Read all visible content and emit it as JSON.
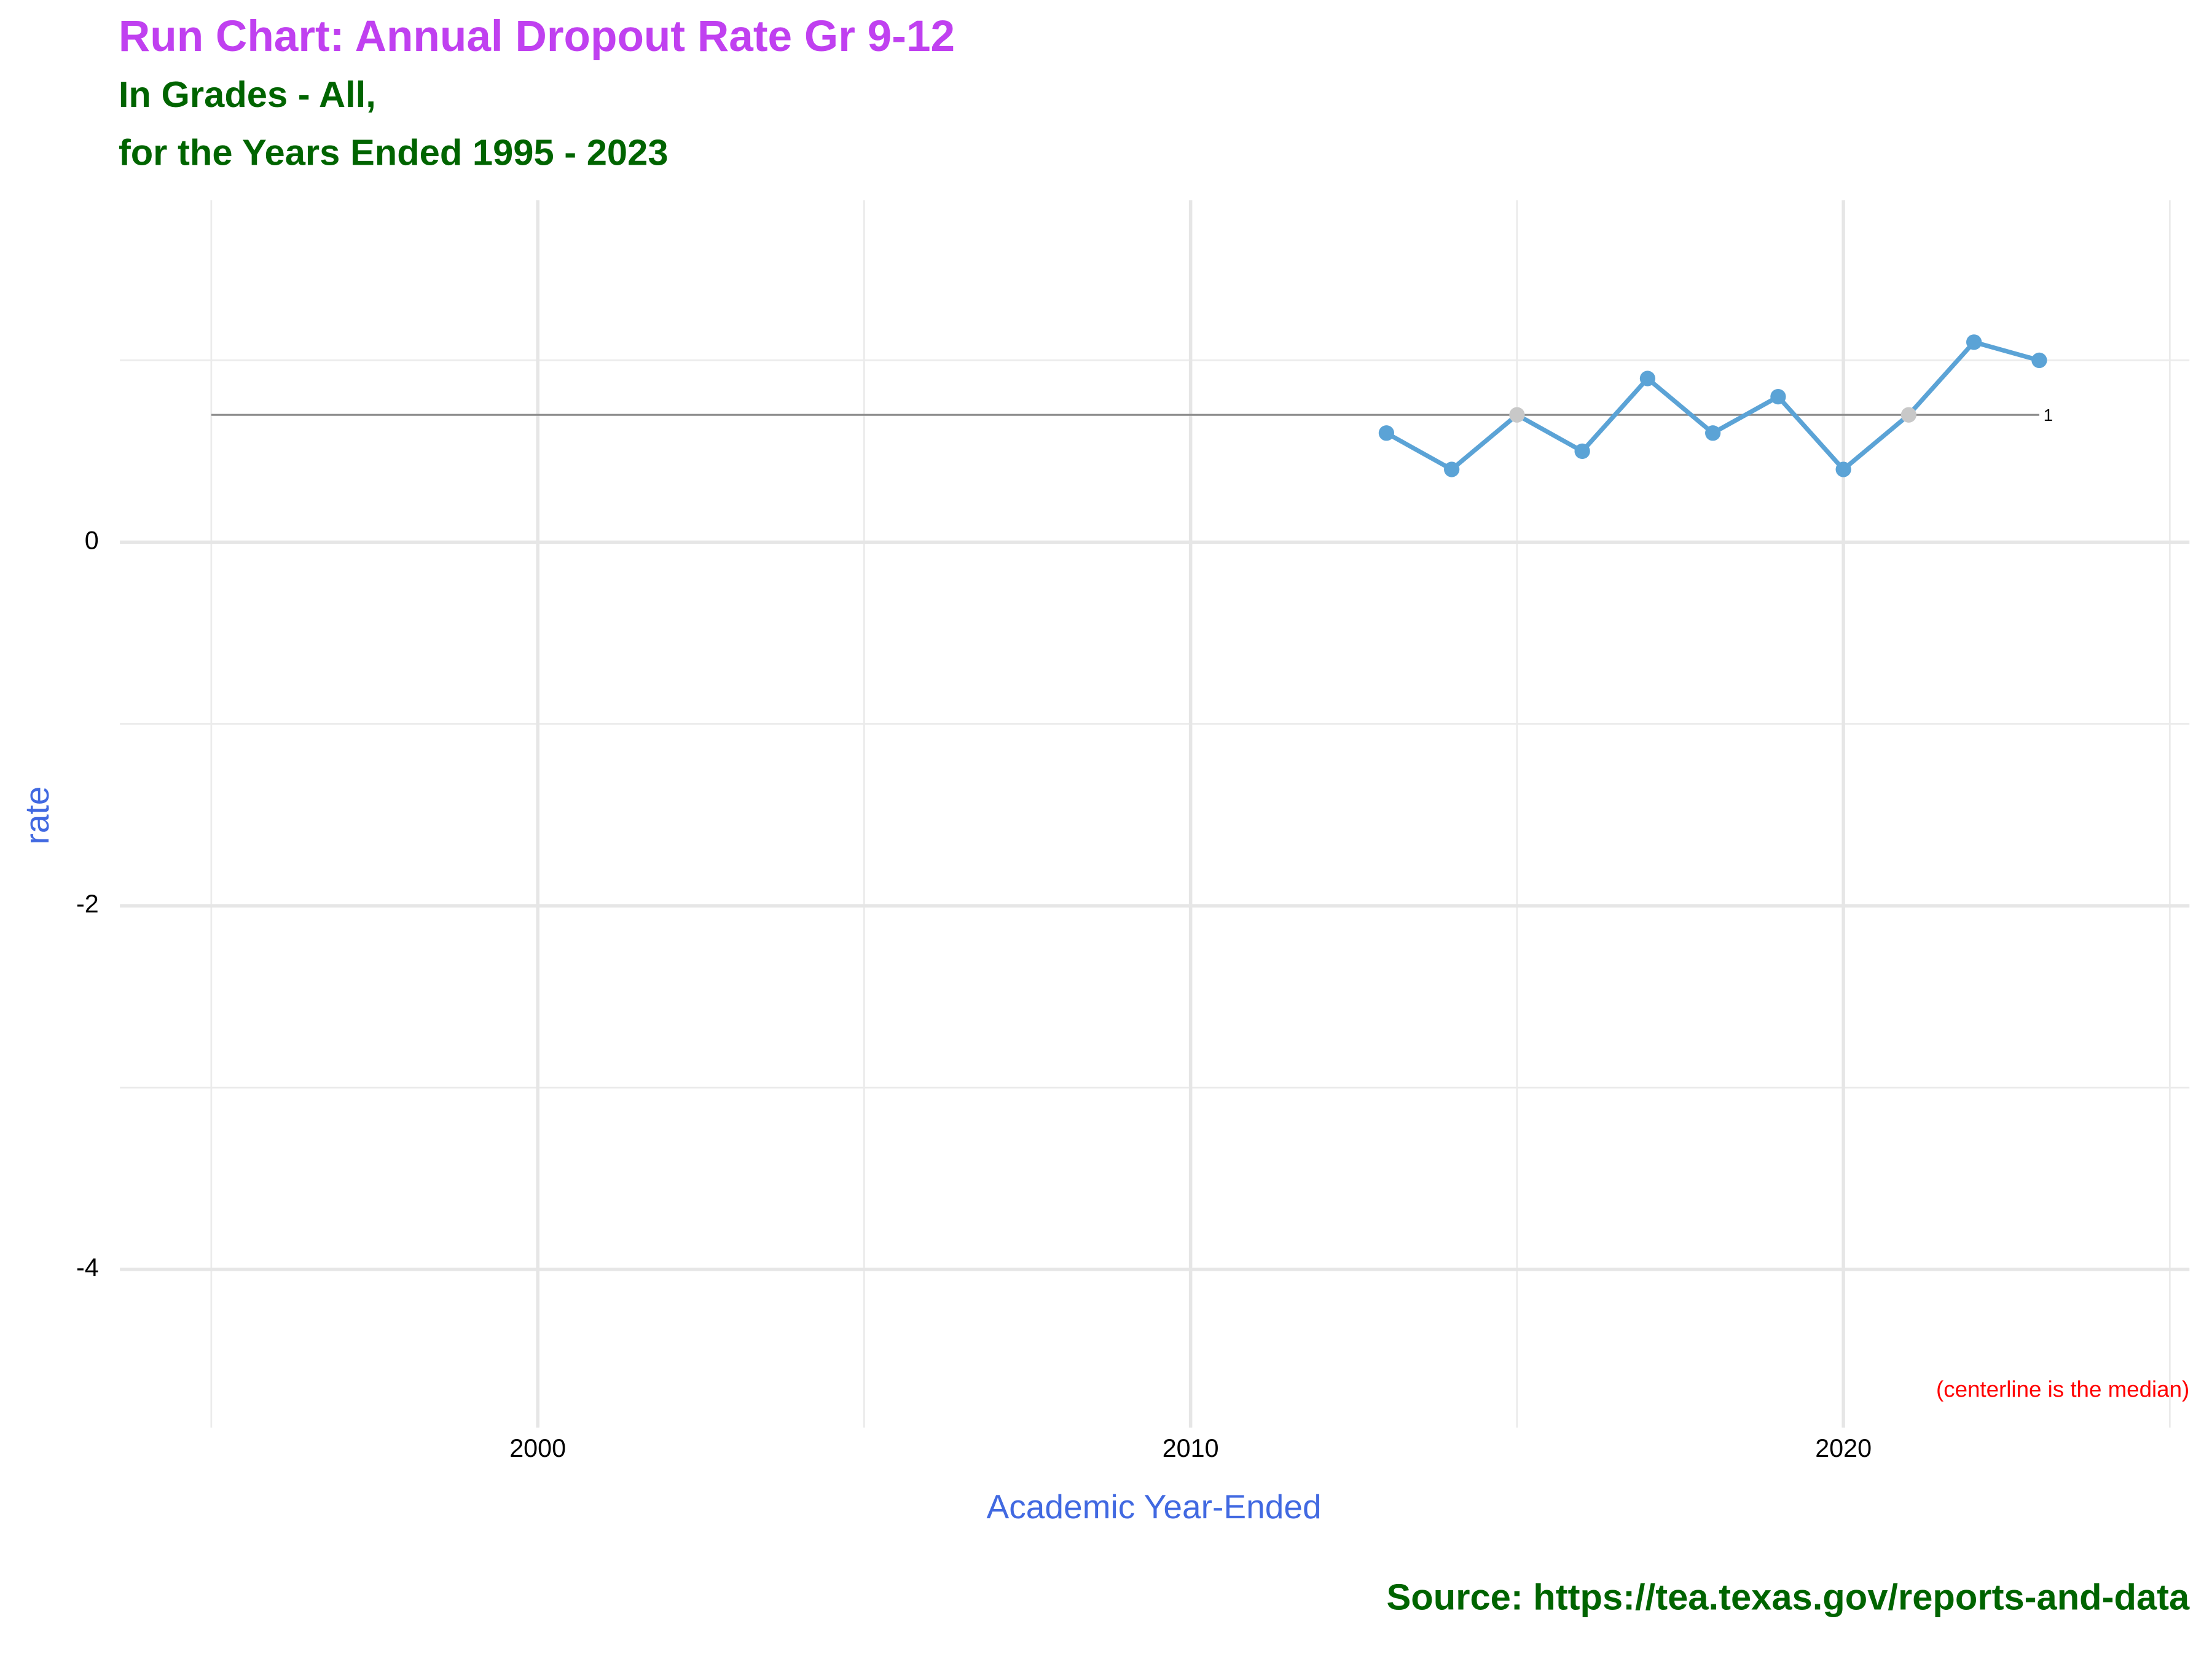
{
  "chart_data": {
    "type": "line",
    "title": "Run Chart: Annual Dropout Rate Gr 9-12",
    "subtitle": [
      "In Grades - All,",
      "for the Years Ended 1995 - 2023"
    ],
    "x_label": "Academic Year-Ended",
    "y_label": "rate",
    "annotation": "(centerline is the median)",
    "caption": "Source:  https://tea.texas.gov/reports-and-data",
    "x": [
      2013,
      2014,
      2015,
      2016,
      2017,
      2018,
      2019,
      2020,
      2021,
      2022,
      2023
    ],
    "series": [
      {
        "name": "rate",
        "color": "#5ba3d6",
        "values": [
          0.6,
          0.4,
          0.7,
          0.5,
          0.9,
          0.6,
          0.8,
          0.4,
          0.7,
          1.1,
          1.0
        ]
      }
    ],
    "median_point_color": "#c8c8c8",
    "centerline": 0.7,
    "centerline_x": [
      1995,
      2023
    ],
    "centerline_label": "1",
    "centerline_color": "#8c8c8c",
    "xlim": [
      1993.6,
      2025.3
    ],
    "ylim": [
      -4.87,
      1.88
    ],
    "xticks": [
      2000,
      2010,
      2020
    ],
    "yticks": [
      -4,
      -2,
      0
    ],
    "xminor": [
      1995,
      2005,
      2015,
      2025
    ],
    "yminor": [
      -3,
      -1,
      1
    ],
    "grid": true
  }
}
